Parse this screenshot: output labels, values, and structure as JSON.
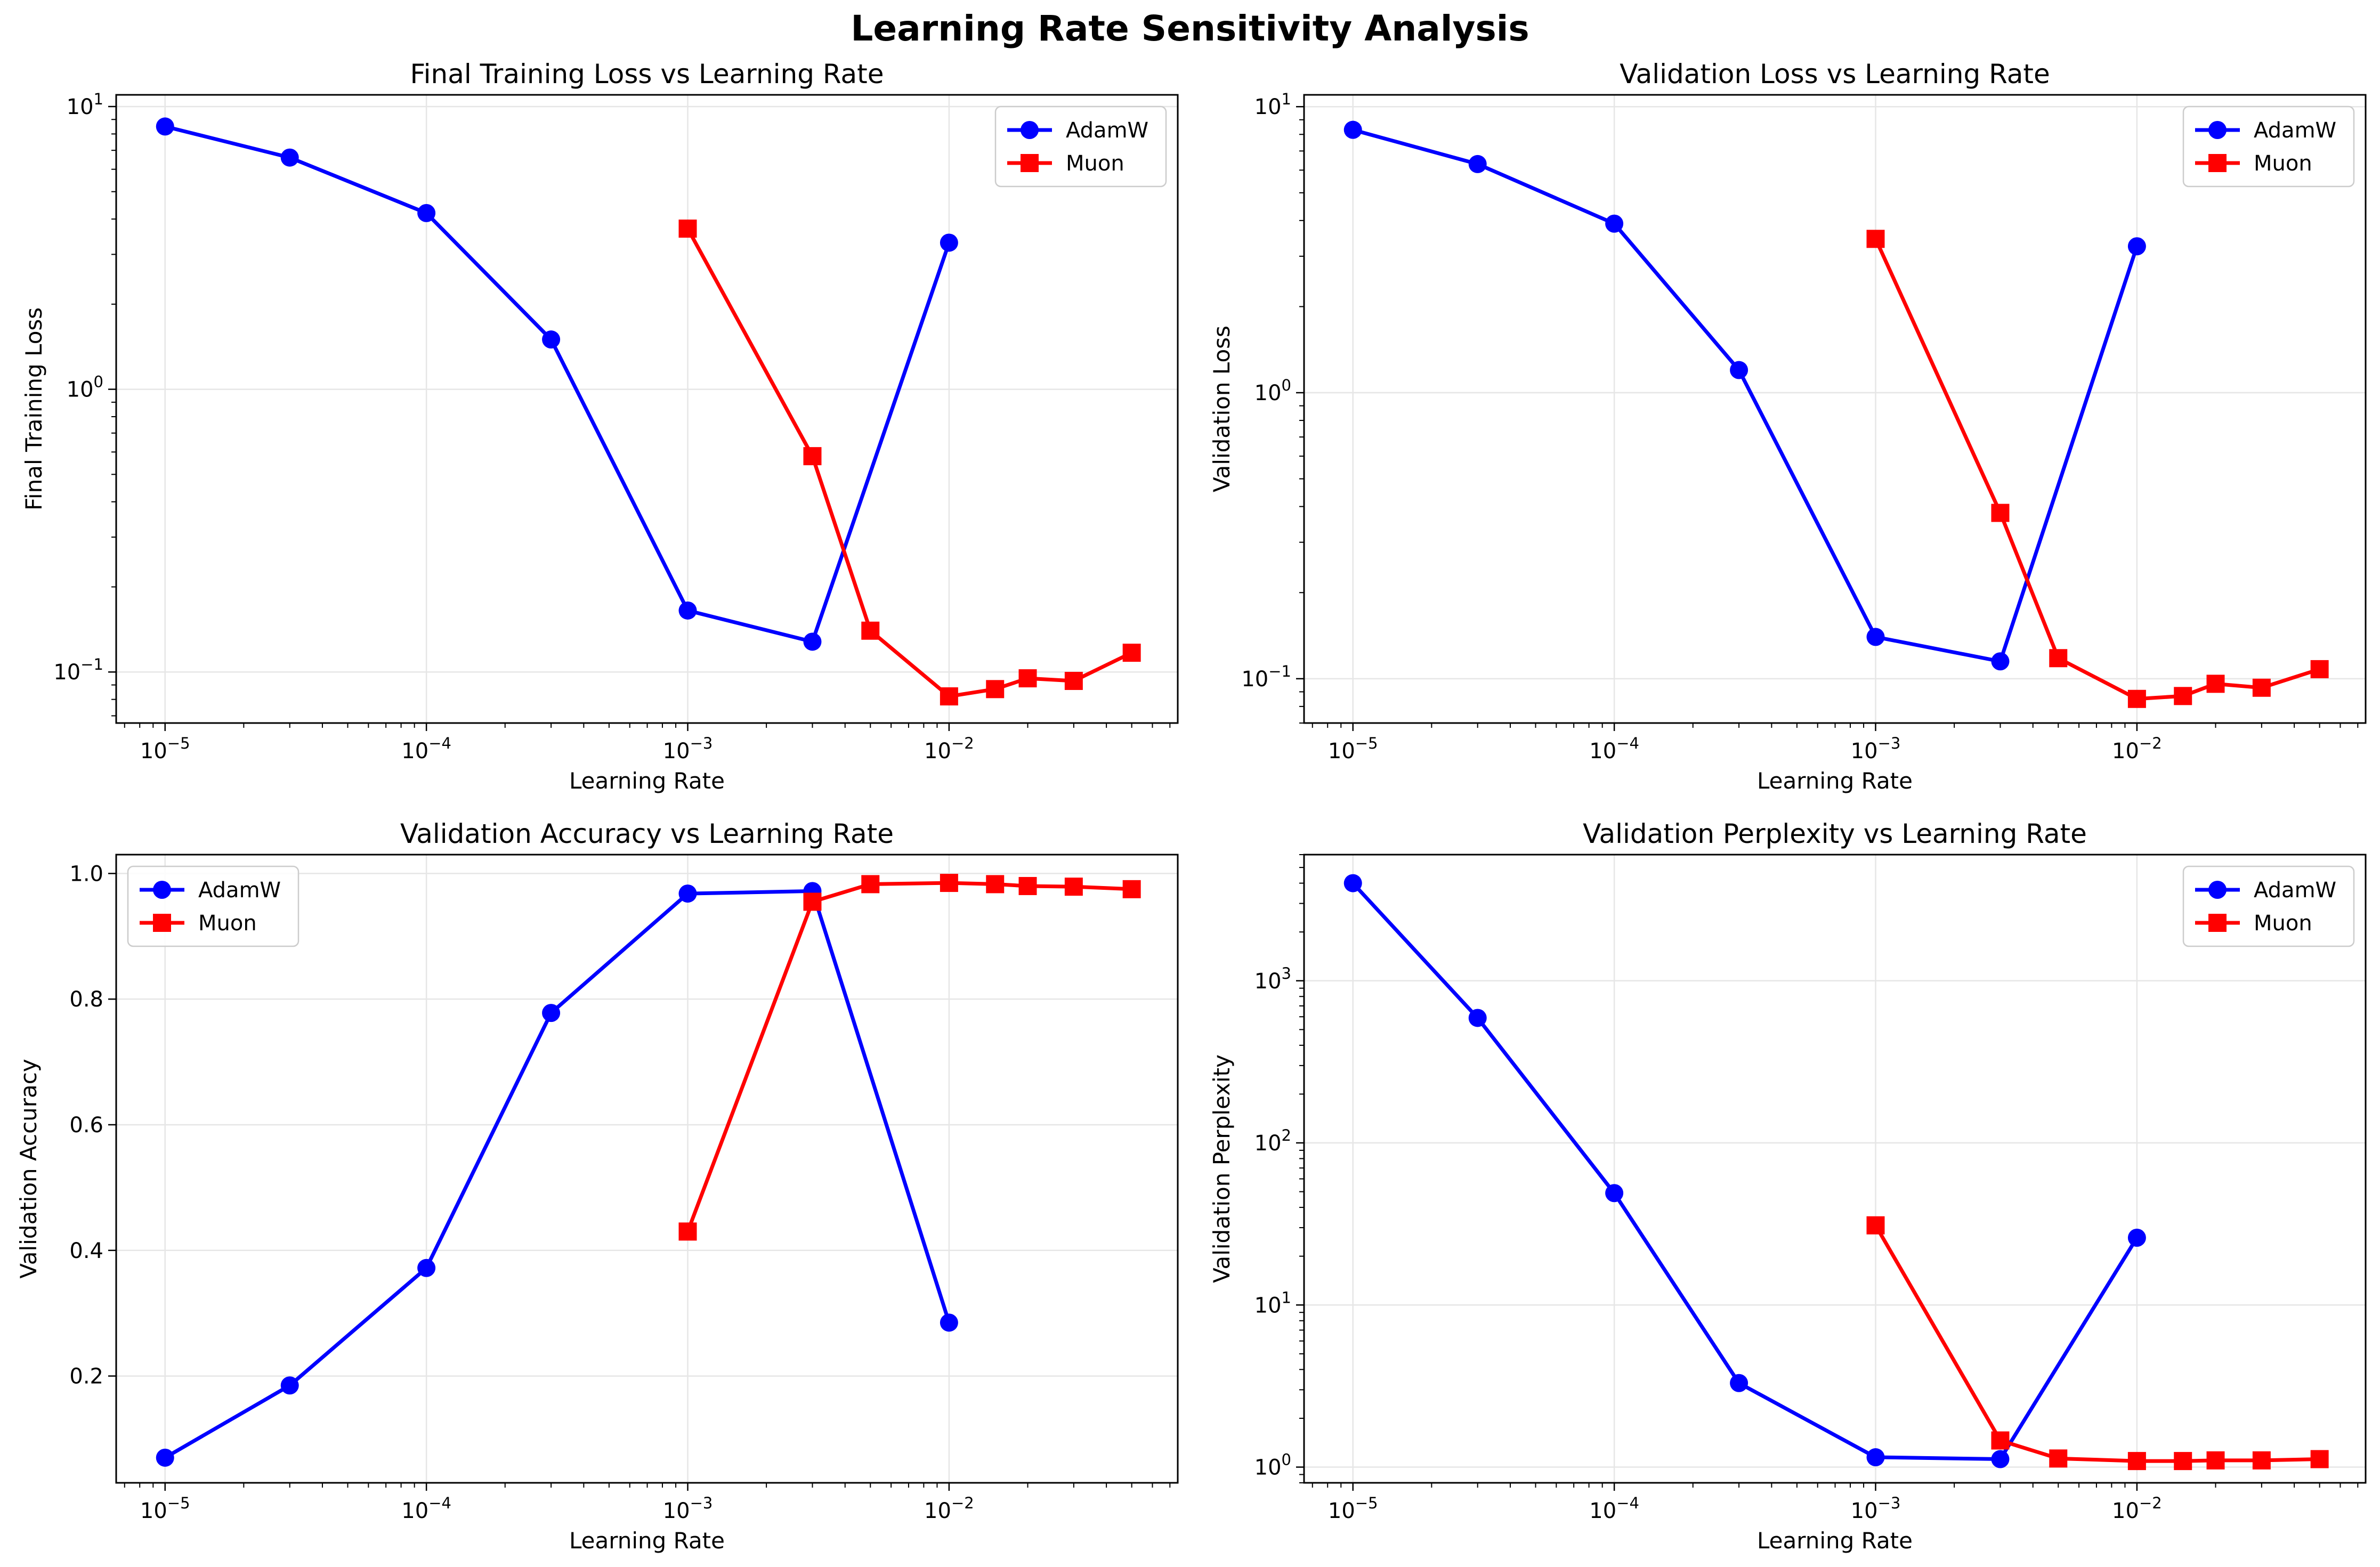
{
  "figure": {
    "suptitle": "Learning Rate Sensitivity Analysis"
  },
  "colors": {
    "adamw": "#0000ff",
    "muon": "#ff0000",
    "grid": "#e6e6e6",
    "axis": "#000000"
  },
  "chart_data": [
    {
      "type": "line",
      "title": "Final Training Loss vs Learning Rate",
      "xlabel": "Learning Rate",
      "ylabel": "Final Training Loss",
      "xscale": "log",
      "yscale": "log",
      "xlim": [
        6.5e-06,
        0.075
      ],
      "ylim": [
        0.066,
        11
      ],
      "xticks": [
        1e-05,
        0.0001,
        0.001,
        0.01
      ],
      "xtick_labels": [
        [
          "10",
          "−5"
        ],
        [
          "10",
          "−4"
        ],
        [
          "10",
          "−3"
        ],
        [
          "10",
          "−2"
        ]
      ],
      "yticks": [
        0.1,
        1,
        10
      ],
      "ytick_labels": [
        [
          "10",
          "−1"
        ],
        [
          "10",
          "0"
        ],
        [
          "10",
          "1"
        ]
      ],
      "grid": true,
      "legend": {
        "position": "top-right",
        "entries": [
          "AdamW",
          "Muon"
        ]
      },
      "series": [
        {
          "name": "AdamW",
          "marker": "circle",
          "color": "#0000ff",
          "x": [
            1e-05,
            3e-05,
            0.0001,
            0.0003,
            0.001,
            0.003,
            0.01
          ],
          "y": [
            8.5,
            6.6,
            4.2,
            1.5,
            0.165,
            0.128,
            3.3
          ]
        },
        {
          "name": "Muon",
          "marker": "square",
          "color": "#ff0000",
          "x": [
            0.001,
            0.003,
            0.005,
            0.01,
            0.015,
            0.02,
            0.03,
            0.05
          ],
          "y": [
            3.7,
            0.58,
            0.14,
            0.082,
            0.087,
            0.095,
            0.093,
            0.117
          ]
        }
      ]
    },
    {
      "type": "line",
      "title": "Validation Loss vs Learning Rate",
      "xlabel": "Learning Rate",
      "ylabel": "Validation Loss",
      "xscale": "log",
      "yscale": "log",
      "xlim": [
        6.5e-06,
        0.075
      ],
      "ylim": [
        0.07,
        11
      ],
      "xticks": [
        1e-05,
        0.0001,
        0.001,
        0.01
      ],
      "xtick_labels": [
        [
          "10",
          "−5"
        ],
        [
          "10",
          "−4"
        ],
        [
          "10",
          "−3"
        ],
        [
          "10",
          "−2"
        ]
      ],
      "yticks": [
        0.1,
        1,
        10
      ],
      "ytick_labels": [
        [
          "10",
          "−1"
        ],
        [
          "10",
          "0"
        ],
        [
          "10",
          "1"
        ]
      ],
      "grid": true,
      "legend": {
        "position": "top-right",
        "entries": [
          "AdamW",
          "Muon"
        ]
      },
      "series": [
        {
          "name": "AdamW",
          "marker": "circle",
          "color": "#0000ff",
          "x": [
            1e-05,
            3e-05,
            0.0001,
            0.0003,
            0.001,
            0.003,
            0.01
          ],
          "y": [
            8.3,
            6.3,
            3.9,
            1.2,
            0.14,
            0.115,
            3.25
          ]
        },
        {
          "name": "Muon",
          "marker": "square",
          "color": "#ff0000",
          "x": [
            0.001,
            0.003,
            0.005,
            0.01,
            0.015,
            0.02,
            0.03,
            0.05
          ],
          "y": [
            3.45,
            0.38,
            0.118,
            0.085,
            0.087,
            0.096,
            0.093,
            0.108
          ]
        }
      ]
    },
    {
      "type": "line",
      "title": "Validation Accuracy vs Learning Rate",
      "xlabel": "Learning Rate",
      "ylabel": "Validation Accuracy",
      "xscale": "log",
      "yscale": "linear",
      "xlim": [
        6.5e-06,
        0.075
      ],
      "ylim": [
        0.03,
        1.03
      ],
      "xticks": [
        1e-05,
        0.0001,
        0.001,
        0.01
      ],
      "xtick_labels": [
        [
          "10",
          "−5"
        ],
        [
          "10",
          "−4"
        ],
        [
          "10",
          "−3"
        ],
        [
          "10",
          "−2"
        ]
      ],
      "yticks": [
        0.2,
        0.4,
        0.6,
        0.8,
        1.0
      ],
      "ytick_labels": [
        [
          "0.2"
        ],
        [
          "0.4"
        ],
        [
          "0.6"
        ],
        [
          "0.8"
        ],
        [
          "1.0"
        ]
      ],
      "grid": true,
      "legend": {
        "position": "top-left",
        "entries": [
          "AdamW",
          "Muon"
        ]
      },
      "series": [
        {
          "name": "AdamW",
          "marker": "circle",
          "color": "#0000ff",
          "x": [
            1e-05,
            3e-05,
            0.0001,
            0.0003,
            0.001,
            0.003,
            0.01
          ],
          "y": [
            0.07,
            0.185,
            0.372,
            0.778,
            0.968,
            0.972,
            0.285
          ]
        },
        {
          "name": "Muon",
          "marker": "square",
          "color": "#ff0000",
          "x": [
            0.001,
            0.003,
            0.005,
            0.01,
            0.015,
            0.02,
            0.03,
            0.05
          ],
          "y": [
            0.43,
            0.955,
            0.983,
            0.985,
            0.983,
            0.98,
            0.979,
            0.975
          ]
        }
      ]
    },
    {
      "type": "line",
      "title": "Validation Perplexity vs Learning Rate",
      "xlabel": "Learning Rate",
      "ylabel": "Validation Perplexity",
      "xscale": "log",
      "yscale": "log",
      "xlim": [
        6.5e-06,
        0.075
      ],
      "ylim": [
        0.8,
        6000
      ],
      "xticks": [
        1e-05,
        0.0001,
        0.001,
        0.01
      ],
      "xtick_labels": [
        [
          "10",
          "−5"
        ],
        [
          "10",
          "−4"
        ],
        [
          "10",
          "−3"
        ],
        [
          "10",
          "−2"
        ]
      ],
      "yticks": [
        1,
        10,
        100,
        1000
      ],
      "ytick_labels": [
        [
          "10",
          "0"
        ],
        [
          "10",
          "1"
        ],
        [
          "10",
          "2"
        ],
        [
          "10",
          "3"
        ]
      ],
      "grid": true,
      "legend": {
        "position": "top-right",
        "entries": [
          "AdamW",
          "Muon"
        ]
      },
      "series": [
        {
          "name": "AdamW",
          "marker": "circle",
          "color": "#0000ff",
          "x": [
            1e-05,
            3e-05,
            0.0001,
            0.0003,
            0.001,
            0.003,
            0.01
          ],
          "y": [
            4000,
            590,
            49,
            3.3,
            1.15,
            1.12,
            26
          ]
        },
        {
          "name": "Muon",
          "marker": "square",
          "color": "#ff0000",
          "x": [
            0.001,
            0.003,
            0.005,
            0.01,
            0.015,
            0.02,
            0.03,
            0.05
          ],
          "y": [
            31,
            1.46,
            1.13,
            1.09,
            1.09,
            1.1,
            1.1,
            1.12
          ]
        }
      ]
    }
  ]
}
